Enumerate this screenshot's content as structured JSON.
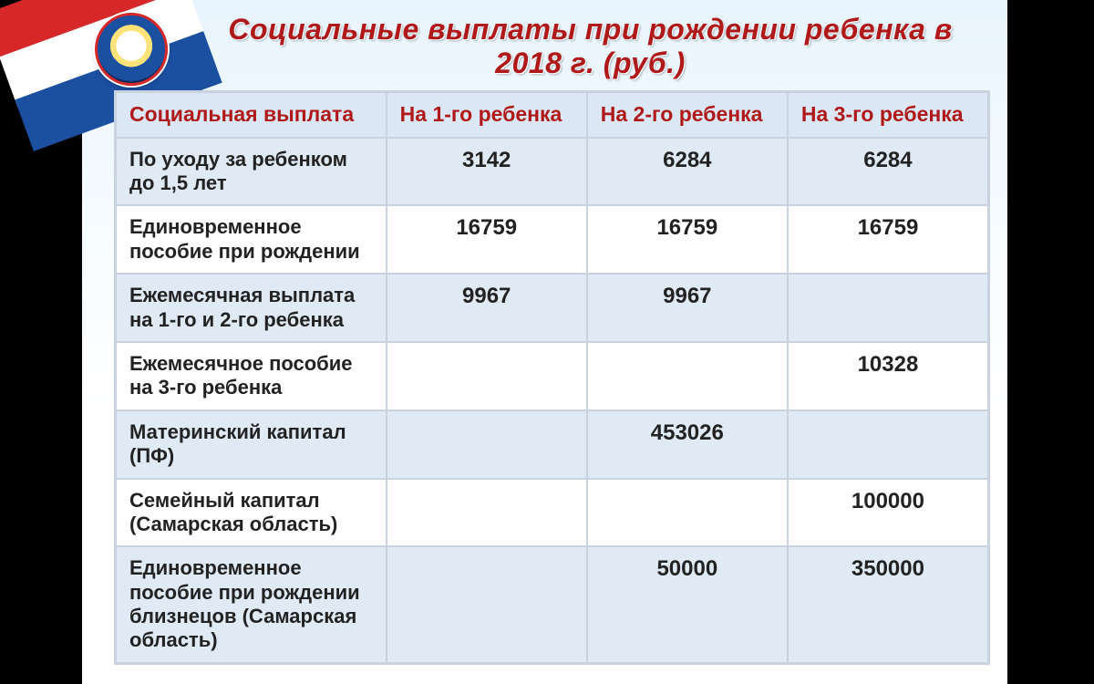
{
  "title": "Социальные выплаты при рождении ребенка в 2018 г. (руб.)",
  "table": {
    "type": "table",
    "columns": [
      "Социальная выплата",
      "На 1-го ребенка",
      "На 2-го ребенка",
      "На 3-го ребенка"
    ],
    "rows": [
      {
        "label": "По уходу за ребенком до 1,5 лет",
        "c1": "3142",
        "c2": "6284",
        "c3": "6284"
      },
      {
        "label": "Единовременное пособие при рождении",
        "c1": "16759",
        "c2": "16759",
        "c3": "16759"
      },
      {
        "label": "Ежемесячная выплата на 1-го и 2-го ребенка",
        "c1": "9967",
        "c2": "9967",
        "c3": ""
      },
      {
        "label": "Ежемесячное пособие на 3-го ребенка",
        "c1": "",
        "c2": "",
        "c3": "10328"
      },
      {
        "label": "Материнский капитал (ПФ)",
        "c1": "",
        "c2": "453026",
        "c3": ""
      },
      {
        "label": "Семейный капитал (Самарская область)",
        "c1": "",
        "c2": "",
        "c3": "100000"
      },
      {
        "label": "Единовременное пособие при рождении близнецов (Самарская область)",
        "c1": "",
        "c2": "50000",
        "c3": "350000"
      }
    ],
    "header_bg": "#dbe7f4",
    "header_color": "#b01919",
    "row_alt_bg": "#e0eaf4",
    "row_bg": "#ffffff",
    "border_color": "#c9d3df",
    "label_fontsize": 22,
    "num_fontsize": 24,
    "header_fontsize": 23
  },
  "style": {
    "title_color": "#b01919",
    "title_fontsize": 32,
    "ribbon_colors": [
      "#d62828",
      "#ffffff",
      "#1b4fa0"
    ],
    "slide_bg_top": "#e8f4fd",
    "slide_bg_bottom": "#ffffff",
    "page_bg": "#000000"
  }
}
